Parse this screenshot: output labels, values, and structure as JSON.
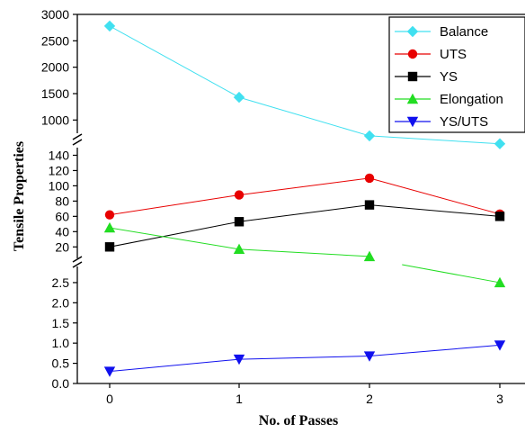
{
  "chart_data": {
    "type": "line",
    "xlabel": "No. of Passes",
    "ylabel": "Tensile Properties",
    "x": [
      0,
      1,
      2,
      3
    ],
    "x_ticks": [
      "0",
      "1",
      "2",
      "3"
    ],
    "y_axis": "broken into three segments",
    "segments": [
      {
        "name": "top",
        "ylim": [
          750,
          3000
        ],
        "ticks": [
          "1000",
          "1500",
          "2000",
          "2500",
          "3000"
        ]
      },
      {
        "name": "middle",
        "ylim": [
          5,
          150
        ],
        "ticks": [
          "20",
          "40",
          "60",
          "80",
          "100",
          "120",
          "140"
        ]
      },
      {
        "name": "bottom",
        "ylim": [
          0,
          2.9
        ],
        "ticks": [
          "0.0",
          "0.5",
          "1.0",
          "1.5",
          "2.0",
          "2.5"
        ]
      }
    ],
    "series": [
      {
        "name": "Balance",
        "color": "#40e0f0",
        "marker": "diamond",
        "segment": "top",
        "values": [
          2780,
          1430,
          700,
          550
        ]
      },
      {
        "name": "UTS",
        "color": "#e80000",
        "marker": "circle",
        "segment": "middle",
        "values": [
          62,
          88,
          110,
          63
        ]
      },
      {
        "name": "YS",
        "color": "#000000",
        "marker": "square",
        "segment": "middle",
        "values": [
          20,
          53,
          75,
          60
        ]
      },
      {
        "name": "Elongation",
        "color": "#22dd22",
        "marker": "triangle-up",
        "segment": "mixed",
        "values": [
          45,
          17,
          7.5,
          2.5
        ]
      },
      {
        "name": "YS/UTS",
        "color": "#1010ee",
        "marker": "triangle-down",
        "segment": "bottom",
        "values": [
          0.3,
          0.6,
          0.68,
          0.95
        ]
      }
    ],
    "legend": {
      "position": "top-right",
      "entries": [
        "Balance",
        "UTS",
        "YS",
        "Elongation",
        "YS/UTS"
      ]
    },
    "grid": false
  }
}
